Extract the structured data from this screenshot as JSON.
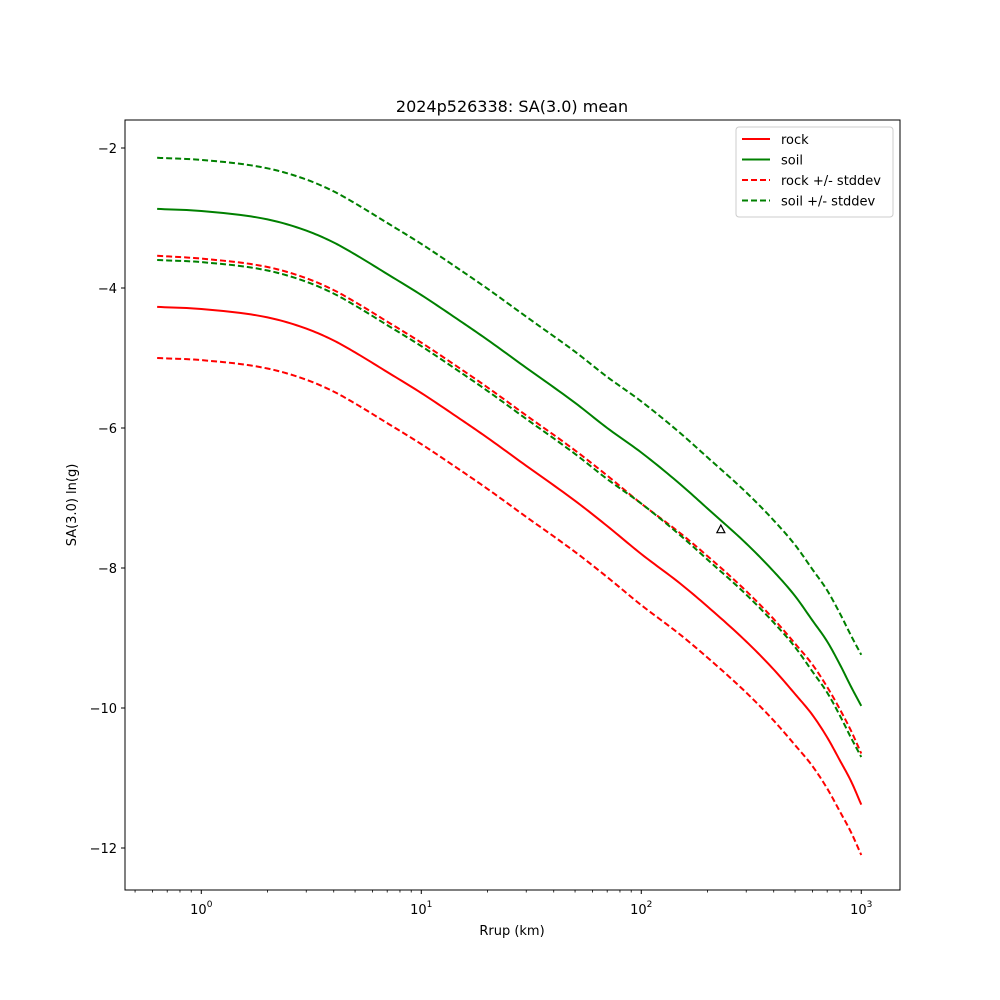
{
  "chart_data": {
    "type": "line",
    "title": "2024p526338: SA(3.0) mean",
    "xlabel": "Rrup (km)",
    "ylabel": "SA(3.0) ln(g)",
    "xscale": "log",
    "xlim": [
      0.45,
      1500
    ],
    "ylim": [
      -12.6,
      -1.6
    ],
    "xticks": [
      1,
      10,
      100,
      1000
    ],
    "xtick_labels": [
      [
        "10",
        "0"
      ],
      [
        "10",
        "1"
      ],
      [
        "10",
        "2"
      ],
      [
        "10",
        "3"
      ]
    ],
    "yticks": [
      -2,
      -4,
      -6,
      -8,
      -10,
      -12
    ],
    "ytick_labels": [
      "−2",
      "−4",
      "−6",
      "−8",
      "−10",
      "−12"
    ],
    "grid": false,
    "legend_position": "top-right",
    "x": [
      0.63,
      1,
      2,
      3,
      4,
      5,
      7,
      10,
      15,
      20,
      30,
      50,
      70,
      100,
      150,
      200,
      300,
      400,
      500,
      600,
      700,
      800,
      900,
      1000
    ],
    "series": [
      {
        "name": "rock",
        "style": "solid",
        "color": "#ff0000",
        "values": [
          -4.27,
          -4.3,
          -4.42,
          -4.58,
          -4.75,
          -4.92,
          -5.2,
          -5.5,
          -5.87,
          -6.14,
          -6.54,
          -7.04,
          -7.4,
          -7.8,
          -8.22,
          -8.55,
          -9.05,
          -9.45,
          -9.8,
          -10.1,
          -10.42,
          -10.75,
          -11.05,
          -11.38
        ]
      },
      {
        "name": "soil",
        "style": "solid",
        "color": "#008000",
        "values": [
          -2.87,
          -2.9,
          -3.02,
          -3.18,
          -3.35,
          -3.52,
          -3.8,
          -4.1,
          -4.47,
          -4.74,
          -5.14,
          -5.64,
          -6.0,
          -6.35,
          -6.8,
          -7.15,
          -7.65,
          -8.05,
          -8.4,
          -8.75,
          -9.05,
          -9.38,
          -9.7,
          -9.97
        ]
      },
      {
        "name": "rock +/- stddev",
        "style": "dashed",
        "color": "#ff0000",
        "values": [
          -3.54,
          -3.58,
          -3.7,
          -3.86,
          -4.03,
          -4.2,
          -4.48,
          -4.78,
          -5.15,
          -5.42,
          -5.82,
          -6.32,
          -6.68,
          -7.08,
          -7.5,
          -7.83,
          -8.33,
          -8.73,
          -9.08,
          -9.38,
          -9.7,
          -10.02,
          -10.33,
          -10.65
        ]
      },
      {
        "name": "",
        "style": "dashed",
        "color": "#ff0000",
        "values": [
          -5.0,
          -5.03,
          -5.15,
          -5.31,
          -5.48,
          -5.65,
          -5.93,
          -6.23,
          -6.6,
          -6.87,
          -7.27,
          -7.77,
          -8.13,
          -8.53,
          -8.95,
          -9.28,
          -9.78,
          -10.18,
          -10.53,
          -10.83,
          -11.15,
          -11.48,
          -11.78,
          -12.1
        ]
      },
      {
        "name": "soil +/- stddev",
        "style": "dashed",
        "color": "#008000",
        "values": [
          -2.14,
          -2.17,
          -2.29,
          -2.45,
          -2.62,
          -2.79,
          -3.07,
          -3.37,
          -3.74,
          -4.01,
          -4.41,
          -4.91,
          -5.27,
          -5.62,
          -6.07,
          -6.42,
          -6.92,
          -7.32,
          -7.67,
          -8.02,
          -8.32,
          -8.65,
          -8.97,
          -9.24
        ]
      },
      {
        "name": "",
        "style": "dashed",
        "color": "#008000",
        "values": [
          -3.6,
          -3.63,
          -3.75,
          -3.91,
          -4.08,
          -4.25,
          -4.53,
          -4.83,
          -5.2,
          -5.47,
          -5.87,
          -6.37,
          -6.73,
          -7.08,
          -7.53,
          -7.88,
          -8.38,
          -8.78,
          -9.13,
          -9.48,
          -9.78,
          -10.11,
          -10.43,
          -10.7
        ]
      }
    ],
    "observations": [
      {
        "marker": "triangle",
        "x": 230,
        "y": -7.45,
        "color": "#000000"
      }
    ]
  }
}
